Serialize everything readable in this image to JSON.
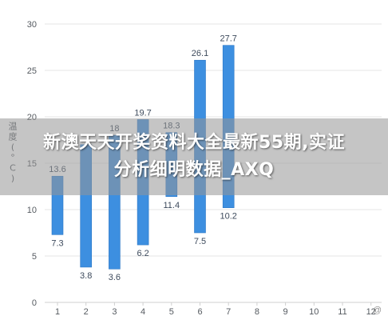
{
  "banner": {
    "title": "新澳天天开奖资料大全最新55期,实证分析细明数据_AXQ"
  },
  "watermark": {
    "text": "@"
  },
  "colors": {
    "bar": "#3d8fe0",
    "bar_edge": "#2a76c6",
    "grid": "#e6e6e6",
    "axis": "#cfcfcf"
  },
  "chart_data": {
    "type": "bar",
    "subtype": "floating-range",
    "categories": [
      "1",
      "2",
      "3",
      "4",
      "5",
      "6",
      "7",
      "8",
      "9",
      "10",
      "11",
      "12"
    ],
    "series": [
      {
        "low": [
          7.3,
          3.8,
          3.6,
          6.2,
          11.4,
          7.5,
          10.2,
          null,
          null,
          null,
          null,
          null
        ],
        "high": [
          13.6,
          17,
          18,
          19.7,
          18.3,
          26.1,
          27.7,
          null,
          null,
          null,
          null,
          null
        ],
        "low_labels": [
          "7.3",
          "3.8",
          "3.6",
          "6.2",
          "11.4",
          "7.5",
          "10.2"
        ],
        "high_labels": [
          "13.6",
          "",
          "18",
          "19.7",
          "18.3",
          "26.1",
          "27.7"
        ]
      }
    ],
    "ylabel": "温度 (°C)",
    "ylim": [
      0,
      30
    ],
    "yticks": [
      "0",
      "5",
      "10",
      "15",
      "20",
      "25",
      "30"
    ],
    "grid": true,
    "legend": "none"
  }
}
